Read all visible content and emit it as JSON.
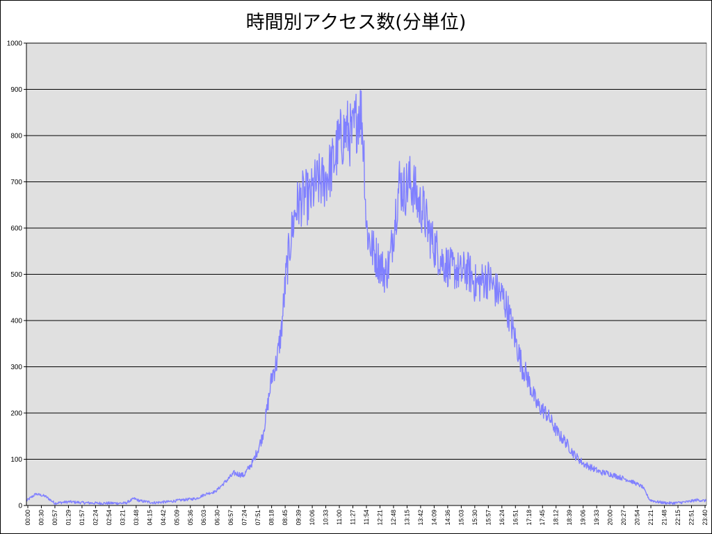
{
  "chart_data": {
    "type": "line",
    "title": "時間別アクセス数(分単位)",
    "xlabel": "",
    "ylabel": "",
    "ylim": [
      0,
      1000
    ],
    "yticks": [
      0,
      100,
      200,
      300,
      400,
      500,
      600,
      700,
      800,
      900,
      1000
    ],
    "grid": true,
    "legend": "none",
    "line_color": "#8080ff",
    "plot_background": "#e0e0e0",
    "x_tick_labels": [
      "00:00",
      "00:30",
      "00:57",
      "01:29",
      "01:57",
      "02:24",
      "02:54",
      "03:21",
      "03:48",
      "04:15",
      "04:42",
      "05:09",
      "05:36",
      "06:03",
      "06:30",
      "06:57",
      "07:24",
      "07:51",
      "08:18",
      "08:45",
      "09:39",
      "10:06",
      "10:33",
      "11:00",
      "11:27",
      "11:54",
      "12:21",
      "12:48",
      "13:15",
      "13:42",
      "14:09",
      "14:36",
      "15:03",
      "15:30",
      "15:57",
      "16:24",
      "16:51",
      "17:18",
      "17:45",
      "18:12",
      "18:39",
      "19:06",
      "19:33",
      "20:00",
      "20:27",
      "20:54",
      "21:21",
      "21:48",
      "22:15",
      "22:51",
      "23:40"
    ],
    "series": [
      {
        "x": [
          "00:00",
          "00:20",
          "00:40",
          "01:00",
          "01:30",
          "02:00",
          "02:30",
          "03:00",
          "03:30",
          "03:48",
          "04:00",
          "04:30",
          "05:00",
          "05:30",
          "06:00",
          "06:20",
          "06:40",
          "07:00",
          "07:20",
          "07:40",
          "08:00",
          "08:10",
          "08:20",
          "08:30",
          "08:40",
          "08:50",
          "09:00",
          "09:10",
          "09:20",
          "09:30",
          "09:40",
          "09:50",
          "10:00",
          "10:10",
          "10:20",
          "10:30",
          "10:40",
          "10:50",
          "11:00",
          "11:10",
          "11:20",
          "11:30",
          "11:40",
          "11:45",
          "11:50",
          "11:55",
          "12:00",
          "12:10",
          "12:20",
          "12:30",
          "12:40",
          "12:50",
          "13:00",
          "13:10",
          "13:20",
          "13:30",
          "13:40",
          "13:50",
          "14:00",
          "14:10",
          "14:20",
          "14:30",
          "14:40",
          "14:50",
          "15:00",
          "15:10",
          "15:20",
          "15:30",
          "15:40",
          "15:50",
          "16:00",
          "16:10",
          "16:20",
          "16:30",
          "16:40",
          "16:50",
          "17:00",
          "17:10",
          "17:20",
          "17:30",
          "17:40",
          "17:50",
          "18:00",
          "18:10",
          "18:20",
          "18:30",
          "18:40",
          "18:50",
          "19:00",
          "19:10",
          "19:20",
          "19:30",
          "19:40",
          "19:50",
          "20:00",
          "20:15",
          "20:30",
          "20:45",
          "21:00",
          "21:15",
          "21:30",
          "21:45",
          "22:00",
          "22:15",
          "22:30",
          "22:45",
          "23:00",
          "23:20",
          "23:40",
          "23:59"
        ],
        "y": [
          10,
          25,
          20,
          5,
          8,
          6,
          5,
          5,
          5,
          15,
          10,
          6,
          8,
          12,
          15,
          25,
          30,
          50,
          70,
          65,
          95,
          120,
          150,
          210,
          280,
          310,
          380,
          500,
          580,
          640,
          660,
          670,
          660,
          690,
          700,
          700,
          720,
          740,
          780,
          800,
          810,
          795,
          840,
          860,
          840,
          760,
          600,
          560,
          540,
          520,
          500,
          530,
          620,
          700,
          680,
          700,
          690,
          650,
          640,
          600,
          570,
          550,
          530,
          520,
          510,
          510,
          500,
          510,
          500,
          480,
          480,
          490,
          490,
          470,
          460,
          450,
          420,
          380,
          340,
          300,
          280,
          250,
          220,
          210,
          200,
          185,
          165,
          150,
          140,
          125,
          110,
          100,
          90,
          85,
          80,
          72,
          70,
          65,
          60,
          55,
          48,
          40,
          12,
          8,
          6,
          5,
          6,
          8,
          12,
          10
        ]
      }
    ]
  }
}
